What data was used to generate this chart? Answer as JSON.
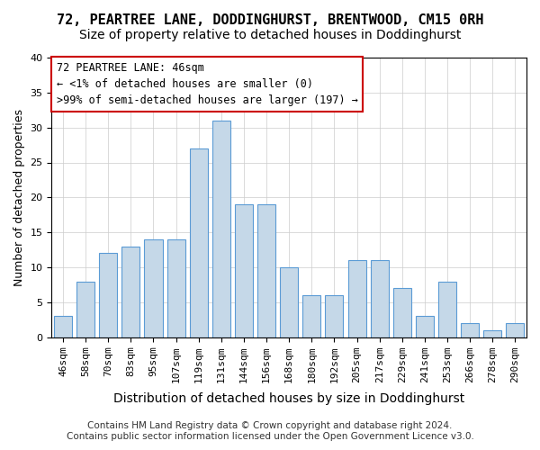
{
  "title": "72, PEARTREE LANE, DODDINGHURST, BRENTWOOD, CM15 0RH",
  "subtitle": "Size of property relative to detached houses in Doddinghurst",
  "xlabel": "Distribution of detached houses by size in Doddinghurst",
  "ylabel": "Number of detached properties",
  "footer1": "Contains HM Land Registry data © Crown copyright and database right 2024.",
  "footer2": "Contains public sector information licensed under the Open Government Licence v3.0.",
  "categories": [
    "46sqm",
    "58sqm",
    "70sqm",
    "83sqm",
    "95sqm",
    "107sqm",
    "119sqm",
    "131sqm",
    "144sqm",
    "156sqm",
    "168sqm",
    "180sqm",
    "192sqm",
    "205sqm",
    "217sqm",
    "229sqm",
    "241sqm",
    "253sqm",
    "266sqm",
    "278sqm",
    "290sqm"
  ],
  "values": [
    3,
    8,
    12,
    13,
    14,
    14,
    27,
    31,
    19,
    19,
    10,
    6,
    6,
    11,
    11,
    7,
    3,
    8,
    2,
    1,
    2
  ],
  "bar_color": "#c5d8e8",
  "bar_edge_color": "#5b9bd5",
  "annotation_box_text": "72 PEARTREE LANE: 46sqm\n← <1% of detached houses are smaller (0)\n>99% of semi-detached houses are larger (197) →",
  "annotation_box_color": "#ffffff",
  "annotation_box_edgecolor": "#cc0000",
  "ylim": [
    0,
    40
  ],
  "yticks": [
    0,
    5,
    10,
    15,
    20,
    25,
    30,
    35,
    40
  ],
  "background_color": "#ffffff",
  "grid_color": "#cccccc",
  "title_fontsize": 11,
  "subtitle_fontsize": 10,
  "xlabel_fontsize": 10,
  "ylabel_fontsize": 9,
  "tick_fontsize": 8,
  "annotation_fontsize": 8.5,
  "footer_fontsize": 7.5
}
